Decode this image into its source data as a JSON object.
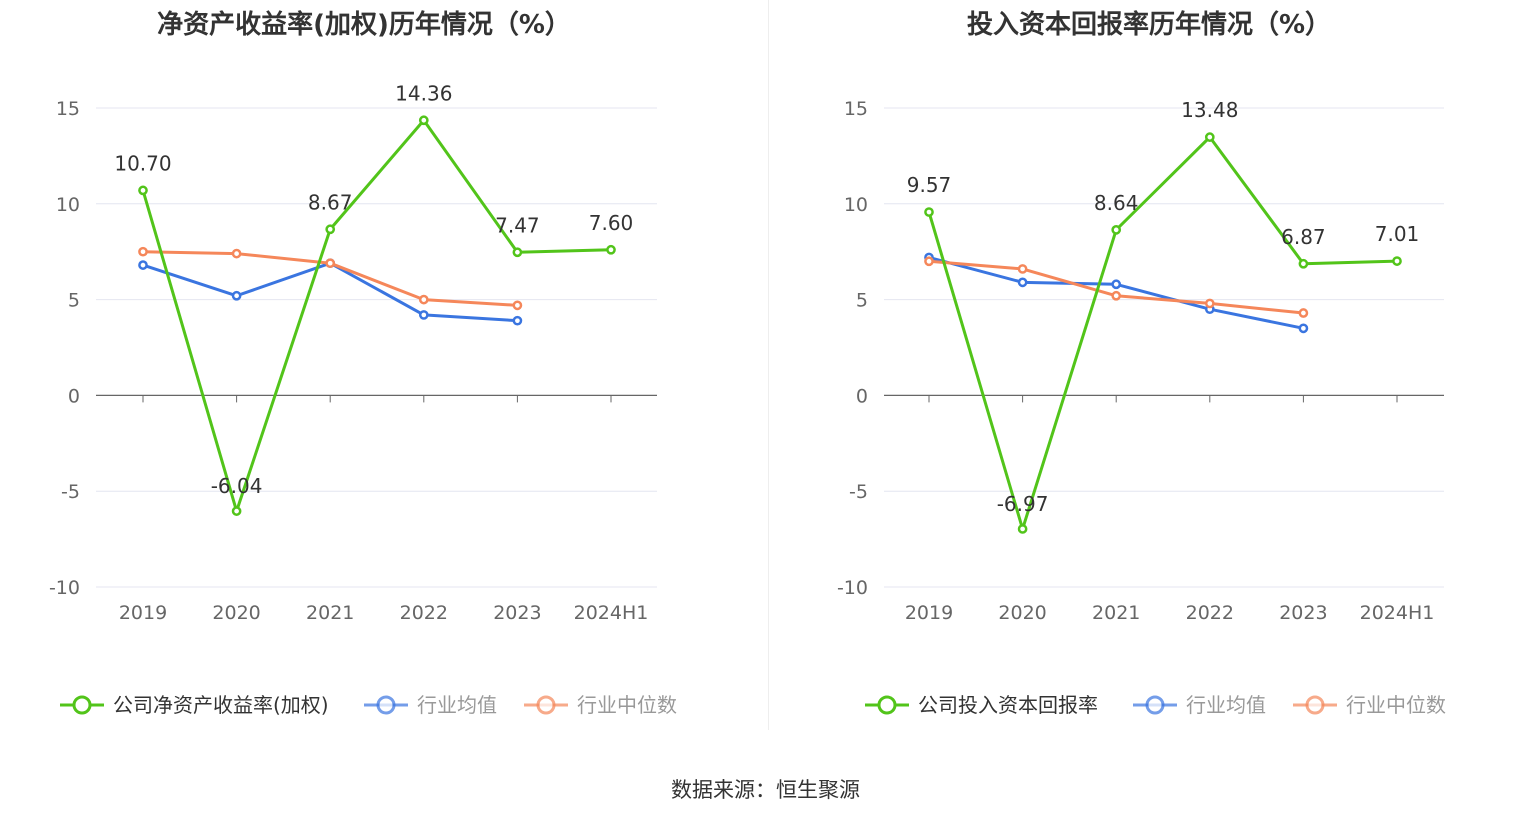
{
  "source_text": "数据来源：恒生聚源",
  "colors": {
    "company": "#52c41a",
    "avg": "#3a75e0",
    "median": "#f5875a",
    "grid": "#e4e6f0",
    "axis": "#666666"
  },
  "chart_data": [
    {
      "type": "line",
      "title": "净资产收益率(加权)历年情况（%）",
      "categories": [
        "2019",
        "2020",
        "2021",
        "2022",
        "2023",
        "2024H1"
      ],
      "ylim": [
        -10,
        15
      ],
      "yticks": [
        15,
        10,
        5,
        0,
        -5,
        -10
      ],
      "grid": true,
      "legend": "bottom",
      "series": [
        {
          "key": "company",
          "name": "公司净资产收益率(加权)",
          "values": [
            10.7,
            -6.04,
            8.67,
            14.36,
            7.47,
            7.6
          ],
          "labels": [
            "10.70",
            "-6.04",
            "8.67",
            "14.36",
            "7.47",
            "7.60"
          ]
        },
        {
          "key": "avg",
          "name": "行业均值",
          "values": [
            6.8,
            5.2,
            6.9,
            4.2,
            3.9,
            null
          ]
        },
        {
          "key": "median",
          "name": "行业中位数",
          "values": [
            7.5,
            7.4,
            6.9,
            5.0,
            4.7,
            null
          ]
        }
      ]
    },
    {
      "type": "line",
      "title": "投入资本回报率历年情况（%）",
      "categories": [
        "2019",
        "2020",
        "2021",
        "2022",
        "2023",
        "2024H1"
      ],
      "ylim": [
        -10,
        15
      ],
      "yticks": [
        15,
        10,
        5,
        0,
        -5,
        -10
      ],
      "grid": true,
      "legend": "bottom",
      "series": [
        {
          "key": "company",
          "name": "公司投入资本回报率",
          "values": [
            9.57,
            -6.97,
            8.64,
            13.48,
            6.87,
            7.01
          ],
          "labels": [
            "9.57",
            "-6.97",
            "8.64",
            "13.48",
            "6.87",
            "7.01"
          ]
        },
        {
          "key": "avg",
          "name": "行业均值",
          "values": [
            7.2,
            5.9,
            5.8,
            4.5,
            3.5,
            null
          ]
        },
        {
          "key": "median",
          "name": "行业中位数",
          "values": [
            7.0,
            6.6,
            5.2,
            4.8,
            4.3,
            null
          ]
        }
      ]
    }
  ]
}
